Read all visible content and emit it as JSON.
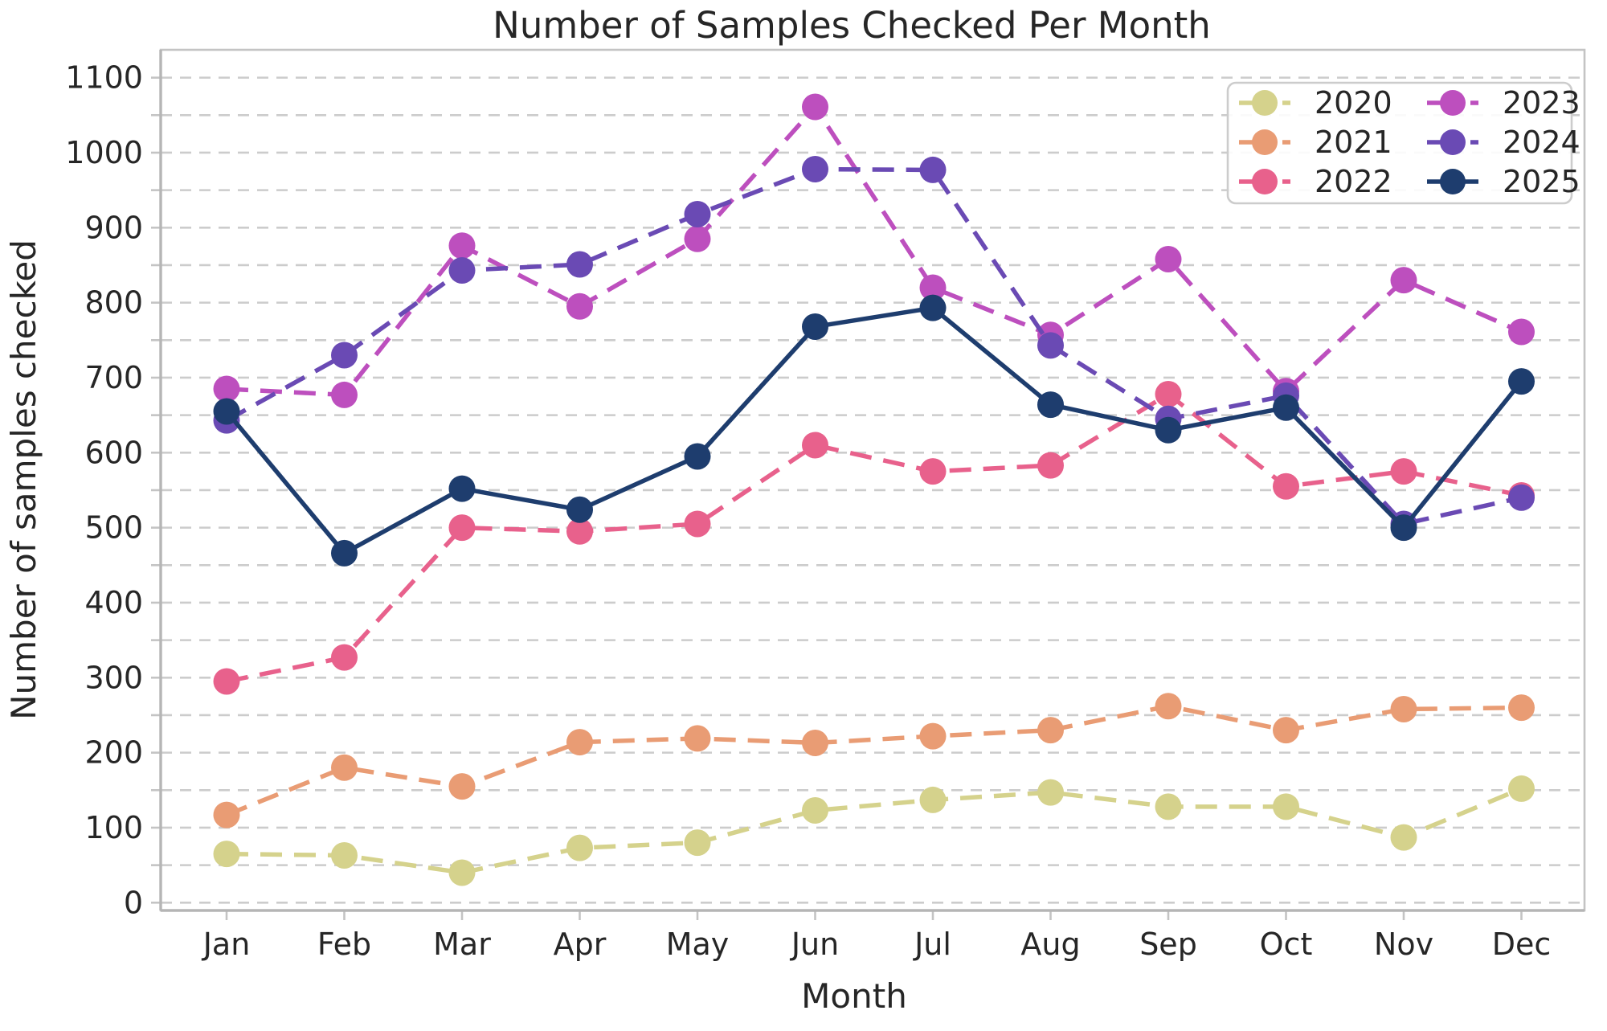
{
  "page": {
    "background": "#ffffff",
    "text_color": "#262626",
    "grid_color": "#cccccc",
    "spine_color": "#c4c4c4"
  },
  "chart_data": {
    "type": "line",
    "title": "Number of Samples Checked Per Month",
    "xlabel": "Month",
    "ylabel": "Number of samples checked",
    "categories": [
      "Jan",
      "Feb",
      "Mar",
      "Apr",
      "May",
      "Jun",
      "Jul",
      "Aug",
      "Sep",
      "Oct",
      "Nov",
      "Dec"
    ],
    "y_ticks": [
      0,
      100,
      200,
      300,
      400,
      500,
      600,
      700,
      800,
      900,
      1000,
      1100
    ],
    "y_minor_grid_step": 50,
    "ylim": [
      -10,
      1137
    ],
    "grid": "horizontal dashed, every 50 units",
    "legend_position": "upper right, 2 columns",
    "legend_entries": [
      "2020",
      "2021",
      "2022",
      "2023",
      "2024",
      "2025"
    ],
    "series": [
      {
        "name": "2020",
        "color": "#d5d28c",
        "dashed": true,
        "values": [
          65,
          63,
          40,
          73,
          80,
          123,
          137,
          147,
          128,
          128,
          87,
          152
        ]
      },
      {
        "name": "2021",
        "color": "#e99c74",
        "dashed": true,
        "values": [
          117,
          180,
          155,
          214,
          219,
          213,
          222,
          230,
          262,
          230,
          258,
          260
        ]
      },
      {
        "name": "2022",
        "color": "#e8618c",
        "dashed": true,
        "values": [
          295,
          327,
          500,
          495,
          505,
          610,
          575,
          583,
          678,
          555,
          575,
          543
        ]
      },
      {
        "name": "2023",
        "color": "#bd4fbe",
        "dashed": true,
        "values": [
          685,
          677,
          876,
          795,
          885,
          1061,
          820,
          757,
          858,
          682,
          830,
          761
        ]
      },
      {
        "name": "2024",
        "color": "#6a4ab4",
        "dashed": true,
        "values": [
          643,
          730,
          843,
          851,
          918,
          978,
          977,
          743,
          645,
          676,
          505,
          540
        ]
      },
      {
        "name": "2025",
        "color": "#1e3d6e",
        "dashed": false,
        "values": [
          655,
          466,
          552,
          524,
          595,
          768,
          793,
          664,
          630,
          660,
          500,
          695
        ]
      }
    ]
  }
}
